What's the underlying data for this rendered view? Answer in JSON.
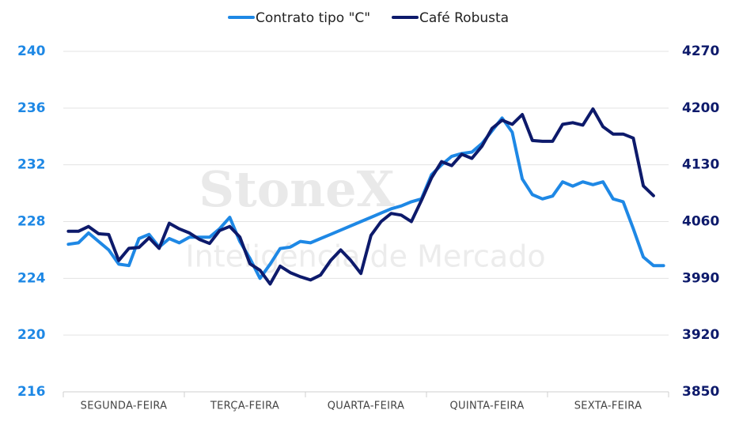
{
  "chart_data": {
    "type": "line",
    "watermark": [
      "StoneX",
      "Inteligência de Mercado"
    ],
    "categories": [
      null,
      null,
      null,
      null,
      null,
      null,
      "SEGUNDA-FEIRA",
      null,
      null,
      null,
      null,
      null,
      null,
      null,
      null,
      null,
      null,
      null,
      "TERÇA-FEIRA",
      null,
      null,
      null,
      null,
      null,
      null,
      null,
      null,
      null,
      null,
      null,
      "QUARTA-FEIRA",
      null,
      null,
      null,
      null,
      null,
      null,
      null,
      null,
      null,
      null,
      null,
      "QUINTA-FEIRA",
      null,
      null,
      null,
      null,
      null,
      null,
      null,
      null,
      null,
      null,
      null,
      "SEXTA-FEIRA",
      null,
      null,
      null,
      null,
      null
    ],
    "series": [
      {
        "name": "Contrato tipo \"C\"",
        "color": "#1e88e5",
        "axis": "y",
        "values": [
          226.4,
          226.5,
          227.2,
          226.6,
          226.0,
          225.0,
          224.9,
          226.8,
          227.1,
          226.2,
          226.8,
          226.5,
          226.9,
          226.9,
          226.9,
          227.5,
          228.3,
          226.6,
          225.4,
          224.0,
          225.0,
          226.1,
          226.2,
          226.6,
          226.5,
          226.8,
          227.1,
          227.4,
          227.7,
          228.0,
          228.3,
          228.6,
          228.9,
          229.1,
          229.4,
          229.6,
          231.3,
          232.0,
          232.6,
          232.8,
          232.9,
          233.5,
          234.4,
          235.3,
          234.3,
          231.0,
          229.9,
          229.6,
          229.8,
          230.8,
          230.5,
          230.8,
          230.6,
          230.8,
          229.6,
          229.4,
          227.5,
          225.5,
          224.9,
          224.9
        ]
      },
      {
        "name": "Café Robusta",
        "color": "#0d1a6b",
        "axis": "y2",
        "values": [
          4048,
          4048,
          4054,
          4045,
          4044,
          4012,
          4027,
          4028,
          4040,
          4027,
          4058,
          4051,
          4046,
          4038,
          4033,
          4049,
          4054,
          4041,
          4008,
          4000,
          3983,
          4005,
          3997,
          3992,
          3988,
          3994,
          4012,
          4025,
          4012,
          3996,
          4043,
          4060,
          4070,
          4068,
          4060,
          4086,
          4114,
          4134,
          4129,
          4143,
          4138,
          4153,
          4175,
          4185,
          4180,
          4192,
          4160,
          4159,
          4159,
          4180,
          4182,
          4179,
          4199,
          4177,
          4168,
          4168,
          4163,
          4104,
          4092,
          null
        ]
      }
    ],
    "ylim": [
      216,
      240
    ],
    "yticks": [
      216,
      220,
      224,
      228,
      232,
      236,
      240
    ],
    "y2lim": [
      3850,
      4270
    ],
    "y2ticks": [
      3850,
      3920,
      3990,
      4060,
      4130,
      4200,
      4270
    ],
    "grid": true,
    "legend": "top"
  }
}
